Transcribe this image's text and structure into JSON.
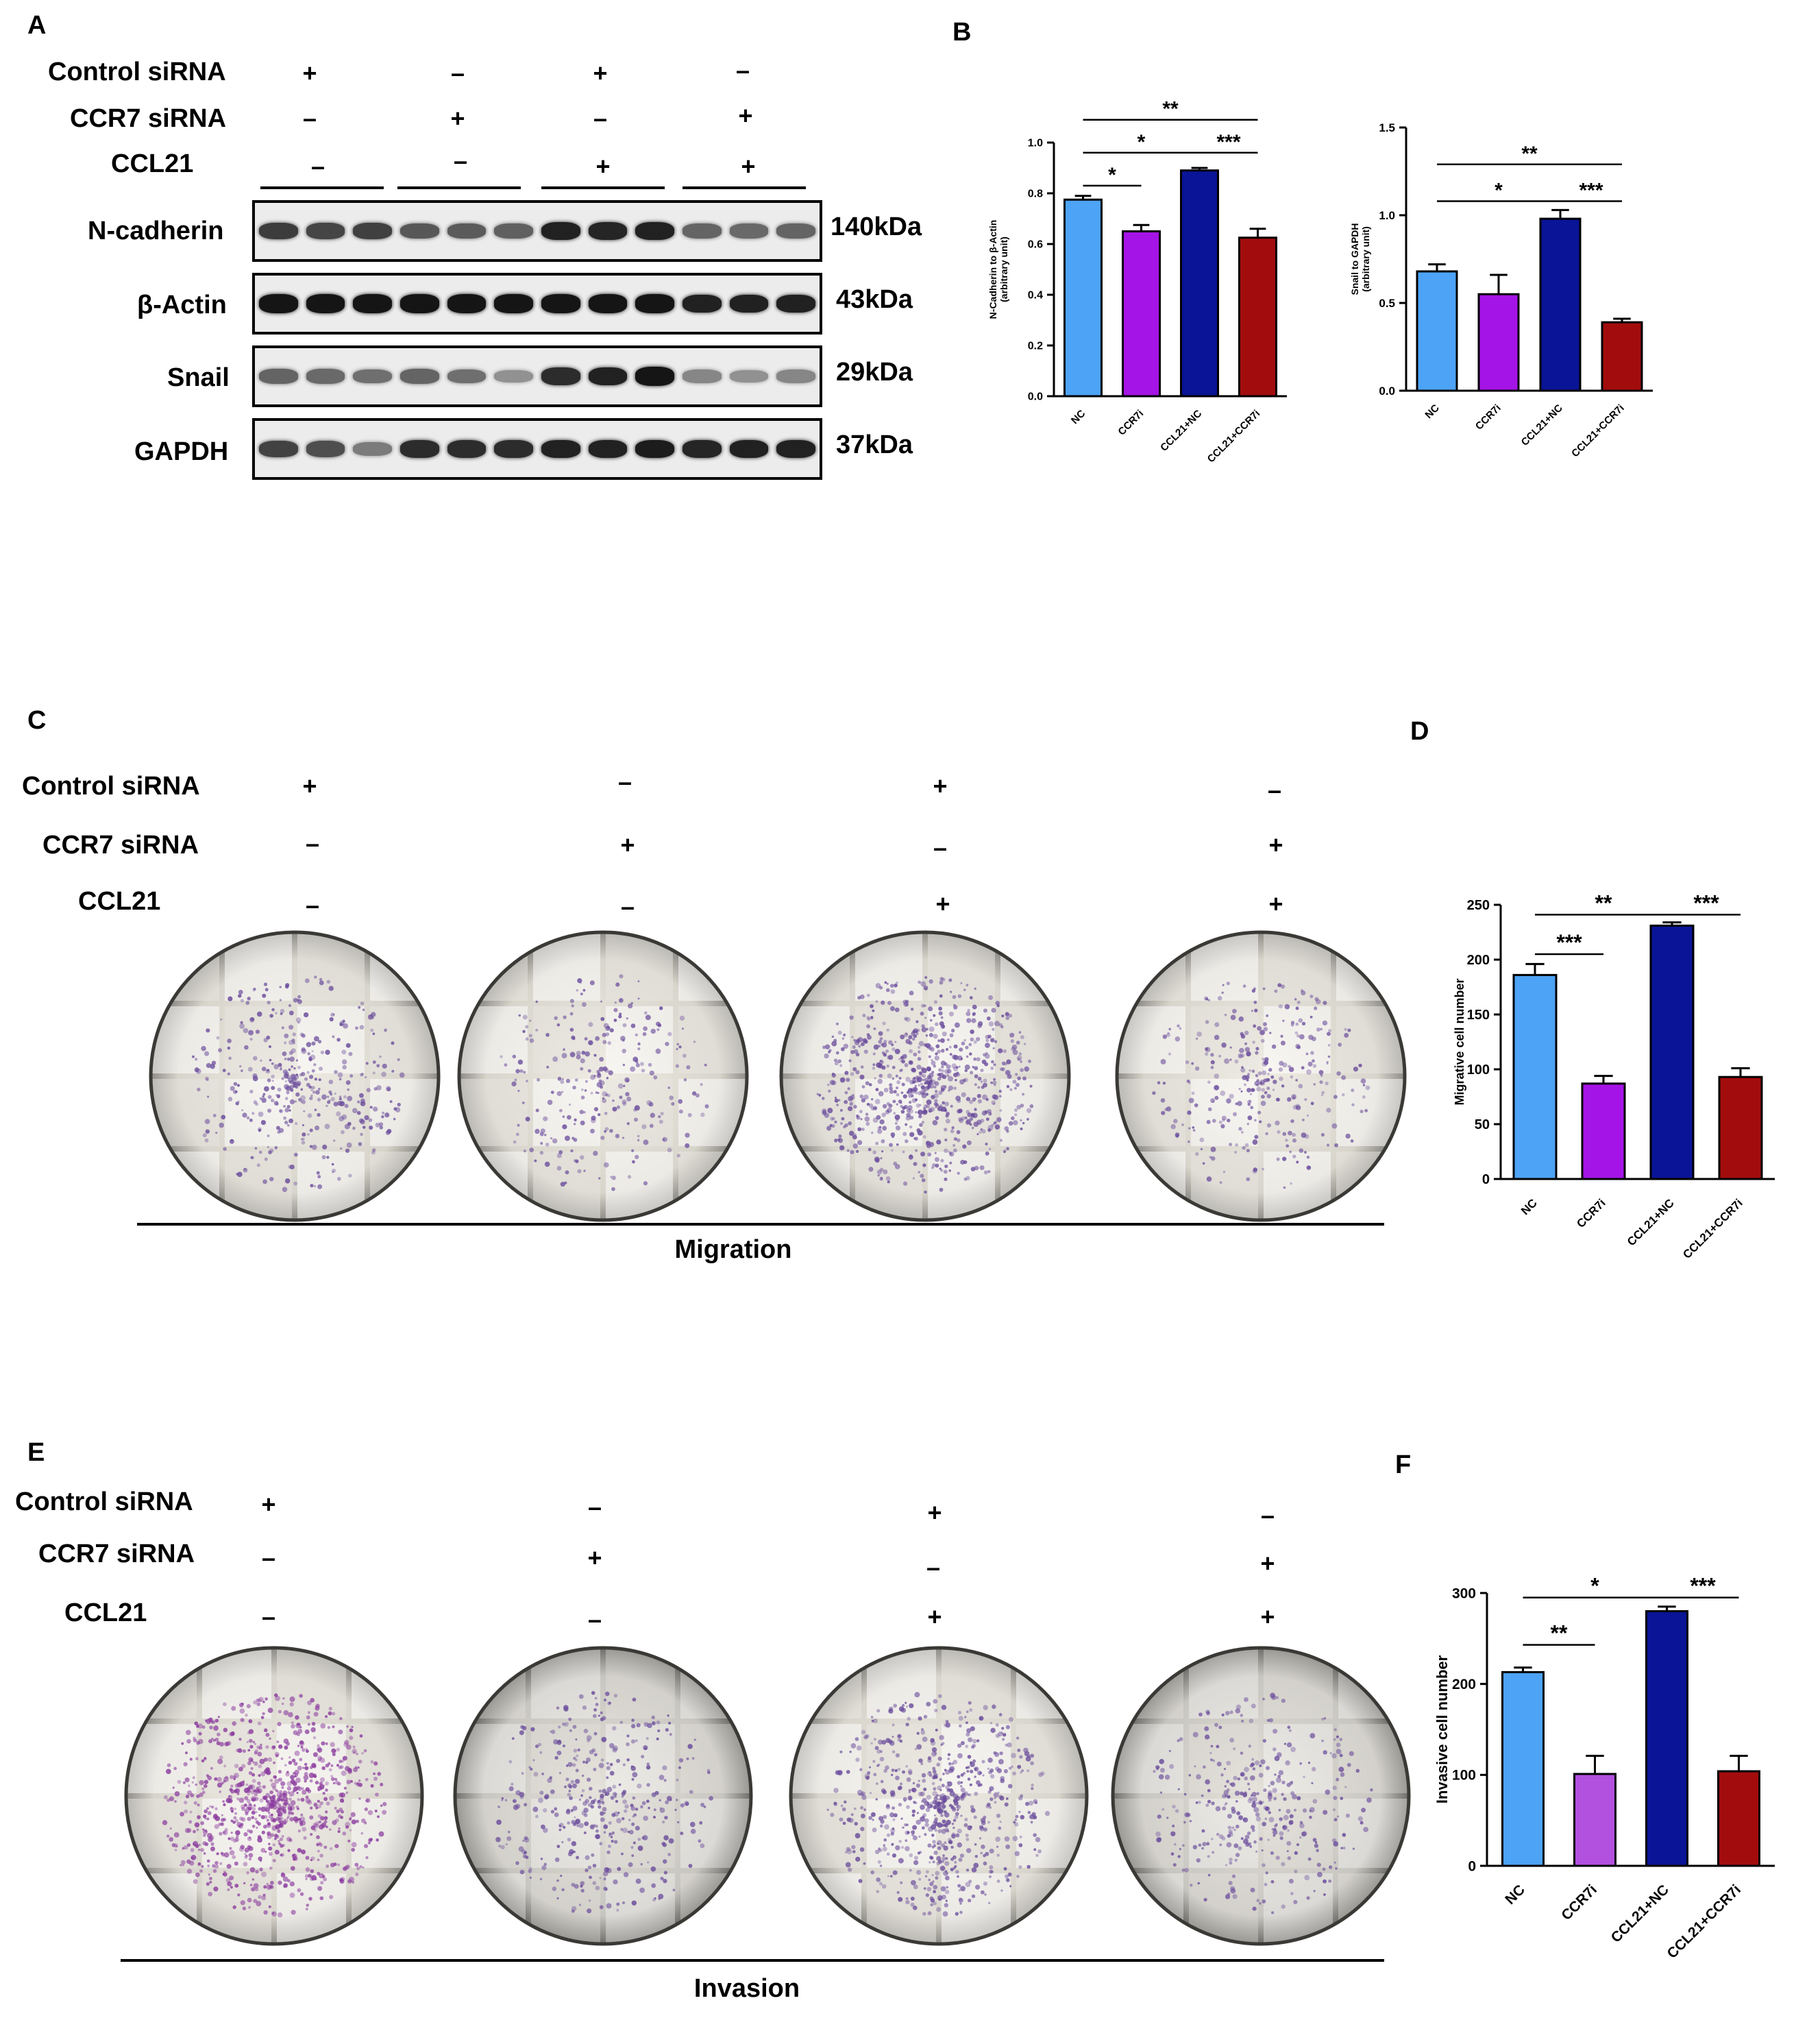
{
  "panels": {
    "A": "A",
    "B": "B",
    "C": "C",
    "D": "D",
    "E": "E",
    "F": "F"
  },
  "conditions": {
    "labels": [
      "Control siRNA",
      "CCR7 siRNA",
      "CCL21"
    ],
    "columns": [
      [
        "+",
        "–",
        "–"
      ],
      [
        "–",
        "+",
        "–"
      ],
      [
        "+",
        "–",
        "+"
      ],
      [
        "–",
        "+",
        "+"
      ]
    ]
  },
  "blot": {
    "rows": [
      {
        "label": "N-cadherin",
        "kda": "140kDa",
        "intensity": [
          0.78,
          0.74,
          0.76,
          0.66,
          0.64,
          0.62,
          0.9,
          0.88,
          0.9,
          0.6,
          0.58,
          0.6
        ]
      },
      {
        "label": "β-Actin",
        "kda": "43kDa",
        "intensity": [
          0.95,
          0.95,
          0.95,
          0.95,
          0.95,
          0.95,
          0.95,
          0.95,
          0.95,
          0.9,
          0.9,
          0.9
        ]
      },
      {
        "label": "Snail",
        "kda": "29kDa",
        "intensity": [
          0.6,
          0.58,
          0.55,
          0.6,
          0.55,
          0.4,
          0.85,
          0.9,
          0.95,
          0.45,
          0.4,
          0.45
        ]
      },
      {
        "label": "GAPDH",
        "kda": "37kDa",
        "intensity": [
          0.75,
          0.7,
          0.5,
          0.85,
          0.85,
          0.85,
          0.9,
          0.9,
          0.92,
          0.88,
          0.9,
          0.9
        ]
      }
    ]
  },
  "micro": {
    "migration_caption": "Migration",
    "invasion_caption": "Invasion",
    "migration_density": [
      0.45,
      0.3,
      0.85,
      0.35
    ],
    "invasion_density": [
      1.0,
      0.45,
      0.75,
      0.4
    ]
  },
  "colors": {
    "NC": "#4da3f5",
    "CCR7i": "#a514e6",
    "CCL21+NC": "#0a1496",
    "CCL21+CCR7i": "#a30c0c",
    "CCR7i_F": "#b250e0"
  },
  "chart_data": [
    {
      "type": "bar",
      "id": "B1",
      "categories": [
        "NC",
        "CCR7i",
        "CCL21+NC",
        "CCL21+CCR7i"
      ],
      "values": [
        0.775,
        0.65,
        0.89,
        0.625
      ],
      "errors": [
        0.015,
        0.025,
        0.01,
        0.035
      ],
      "ylabel": "N-Cadherin to β-Actin\n(arbitrary unit)",
      "ylim": [
        0,
        1.0
      ],
      "yticks": [
        "0.0",
        "0.2",
        "0.4",
        "0.6",
        "0.8",
        "1.0"
      ],
      "significance": [
        {
          "from": 0,
          "to": 1,
          "label": "*",
          "level": 0.83
        },
        {
          "from": 0,
          "to": 2,
          "label": "*",
          "level": 0.96
        },
        {
          "from": 2,
          "to": 3,
          "label": "***",
          "level": 0.96
        },
        {
          "from": 0,
          "to": 3,
          "label": "**",
          "level": 1.09
        }
      ]
    },
    {
      "type": "bar",
      "id": "B2",
      "categories": [
        "NC",
        "CCR7i",
        "CCL21+NC",
        "CCL21+CCR7i"
      ],
      "values": [
        0.68,
        0.55,
        0.98,
        0.39
      ],
      "errors": [
        0.04,
        0.11,
        0.05,
        0.02
      ],
      "ylabel": "Snail to GAPDH\n(arbitrary unit)",
      "ylim": [
        0,
        1.5
      ],
      "yticks": [
        "0.0",
        "0.5",
        "1.0",
        "1.5"
      ],
      "significance": [
        {
          "from": 0,
          "to": 2,
          "label": "*",
          "level": 1.08
        },
        {
          "from": 2,
          "to": 3,
          "label": "***",
          "level": 1.08
        },
        {
          "from": 0,
          "to": 3,
          "label": "**",
          "level": 1.29
        }
      ]
    },
    {
      "type": "bar",
      "id": "D",
      "categories": [
        "NC",
        "CCR7i",
        "CCL21+NC",
        "CCL21+CCR7i"
      ],
      "values": [
        186,
        87,
        231,
        93
      ],
      "errors": [
        10,
        7,
        3,
        8
      ],
      "ylabel": "Migrative cell number",
      "ylim": [
        0,
        250
      ],
      "yticks": [
        "0",
        "50",
        "100",
        "150",
        "200",
        "250"
      ],
      "significance": [
        {
          "from": 0,
          "to": 1,
          "label": "***",
          "level": 205
        },
        {
          "from": 0,
          "to": 2,
          "label": "**",
          "level": 241
        },
        {
          "from": 2,
          "to": 3,
          "label": "***",
          "level": 241
        }
      ]
    },
    {
      "type": "bar",
      "id": "F",
      "categories": [
        "NC",
        "CCR7i",
        "CCL21+NC",
        "CCL21+CCR7i"
      ],
      "values": [
        213,
        101,
        280,
        104
      ],
      "errors": [
        5,
        20,
        5,
        17
      ],
      "ylabel": "Invasive cell number",
      "ylim": [
        0,
        300
      ],
      "yticks": [
        "0",
        "100",
        "200",
        "300"
      ],
      "significance": [
        {
          "from": 0,
          "to": 1,
          "label": "**",
          "level": 243
        },
        {
          "from": 0,
          "to": 2,
          "label": "*",
          "level": 295
        },
        {
          "from": 2,
          "to": 3,
          "label": "***",
          "level": 295
        }
      ]
    }
  ]
}
